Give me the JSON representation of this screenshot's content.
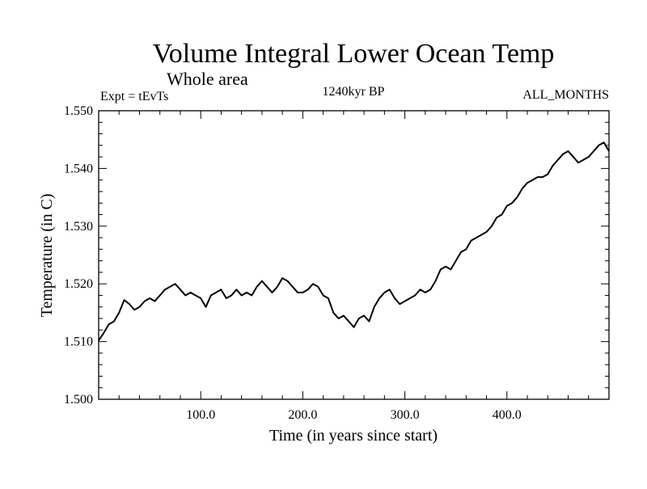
{
  "chart_data": {
    "type": "line",
    "title": "Volume Integral Lower Ocean Temp",
    "subtitle": "Whole area",
    "annotations": {
      "left": "Expt = tEvTs",
      "center": "1240kyr BP",
      "right": "ALL_MONTHS"
    },
    "xlabel": "Time (in years since start)",
    "ylabel": "Temperature (in C)",
    "xlim": [
      0,
      500
    ],
    "ylim": [
      1.5,
      1.55
    ],
    "x_ticks": [
      100,
      200,
      300,
      400
    ],
    "x_tick_labels": [
      "100.0",
      "200.0",
      "300.0",
      "400.0"
    ],
    "y_ticks": [
      1.5,
      1.51,
      1.52,
      1.53,
      1.54,
      1.55
    ],
    "y_tick_labels": [
      "1.500",
      "1.510",
      "1.520",
      "1.530",
      "1.540",
      "1.550"
    ],
    "grid": false,
    "series": [
      {
        "name": "temperature",
        "color": "#000000",
        "x": [
          0,
          5,
          10,
          15,
          20,
          25,
          30,
          35,
          40,
          45,
          50,
          55,
          60,
          65,
          70,
          75,
          80,
          85,
          90,
          95,
          100,
          105,
          110,
          115,
          120,
          125,
          130,
          135,
          140,
          145,
          150,
          155,
          160,
          165,
          170,
          175,
          180,
          185,
          190,
          195,
          200,
          205,
          210,
          215,
          220,
          225,
          230,
          235,
          240,
          245,
          250,
          255,
          260,
          265,
          270,
          275,
          280,
          285,
          290,
          295,
          300,
          305,
          310,
          315,
          320,
          325,
          330,
          335,
          340,
          345,
          350,
          355,
          360,
          365,
          370,
          375,
          380,
          385,
          390,
          395,
          400,
          405,
          410,
          415,
          420,
          425,
          430,
          435,
          440,
          445,
          450,
          455,
          460,
          465,
          470,
          475,
          480,
          485,
          490,
          495,
          500
        ],
        "values": [
          1.5102,
          1.5115,
          1.513,
          1.5135,
          1.515,
          1.5172,
          1.5165,
          1.5155,
          1.516,
          1.517,
          1.5175,
          1.517,
          1.518,
          1.519,
          1.5195,
          1.52,
          1.519,
          1.518,
          1.5185,
          1.518,
          1.5175,
          1.516,
          1.518,
          1.5185,
          1.519,
          1.5175,
          1.518,
          1.519,
          1.518,
          1.5185,
          1.518,
          1.5195,
          1.5205,
          1.5195,
          1.5185,
          1.5195,
          1.521,
          1.5205,
          1.5195,
          1.5185,
          1.5185,
          1.519,
          1.52,
          1.5195,
          1.518,
          1.5175,
          1.515,
          1.514,
          1.5145,
          1.5135,
          1.5125,
          1.514,
          1.5145,
          1.5135,
          1.516,
          1.5175,
          1.5185,
          1.519,
          1.5175,
          1.5165,
          1.517,
          1.5175,
          1.518,
          1.519,
          1.5185,
          1.519,
          1.5205,
          1.5225,
          1.523,
          1.5225,
          1.524,
          1.5255,
          1.526,
          1.5275,
          1.528,
          1.5285,
          1.529,
          1.53,
          1.5315,
          1.532,
          1.5335,
          1.534,
          1.535,
          1.5365,
          1.5375,
          1.538,
          1.5385,
          1.5385,
          1.539,
          1.5405,
          1.5415,
          1.5425,
          1.543,
          1.542,
          1.541,
          1.5415,
          1.542,
          1.543,
          1.544,
          1.5445,
          1.543
        ]
      }
    ]
  }
}
